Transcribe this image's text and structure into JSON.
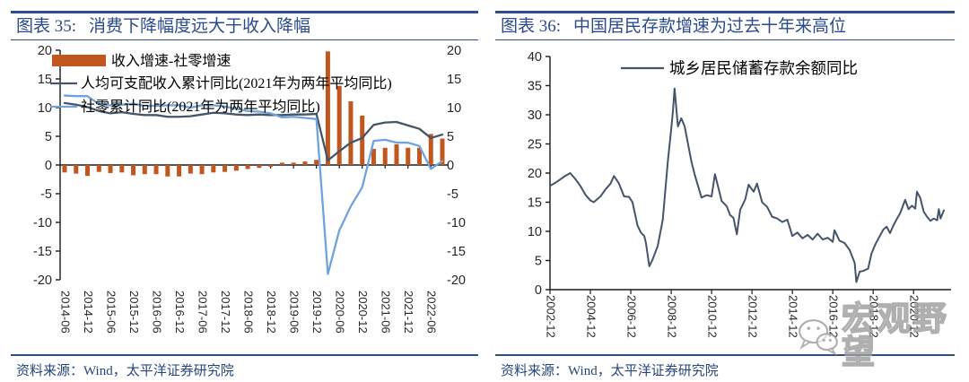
{
  "source_note": "资料来源：Wind，太平洋证券研究院",
  "watermark": {
    "text": "宏观野望",
    "icon": "wechat-bubbles-icon"
  },
  "colors": {
    "title_blue": "#2B4A8C",
    "rule_blue": "#2F4F8C",
    "source_blue": "#26447E",
    "bar_orange": "#C0571F",
    "income_line": "#44546A",
    "retail_line": "#6FA3DC",
    "deposit_line": "#44546A",
    "axis": "#1a1a1a",
    "watermark_gray": "#9c9c9c"
  },
  "left_panel": {
    "title_prefix": "图表 35:",
    "title": "消费下降幅度远大于收入降幅"
  },
  "right_panel": {
    "title_prefix": "图表 36:",
    "title": "中国居民存款增速为过去十年来高位"
  },
  "chart_data": [
    {
      "type": "bar",
      "subtype": "combo-bar-line",
      "title": "图表 35: 消费下降幅度远大于收入降幅",
      "ylim": [
        -20,
        20
      ],
      "ytick_step": 5,
      "secondary_y_axis": true,
      "grid": false,
      "legend_position": "top-left",
      "categories": [
        "2014-06",
        "2014-09",
        "2014-12",
        "2015-03",
        "2015-06",
        "2015-09",
        "2015-12",
        "2016-03",
        "2016-06",
        "2016-09",
        "2016-12",
        "2017-03",
        "2017-06",
        "2017-09",
        "2017-12",
        "2018-03",
        "2018-06",
        "2018-09",
        "2018-12",
        "2019-03",
        "2019-06",
        "2019-09",
        "2019-12",
        "2020-03",
        "2020-06",
        "2020-09",
        "2020-12",
        "2021-03",
        "2021-06",
        "2021-09",
        "2021-12",
        "2022-03",
        "2022-06",
        "2022-09"
      ],
      "x_tick_labels": [
        "2014-06",
        "2014-12",
        "2015-06",
        "2015-12",
        "2016-06",
        "2016-12",
        "2017-06",
        "2017-12",
        "2018-06",
        "2018-12",
        "2019-06",
        "2019-12",
        "2020-06",
        "2020-12",
        "2021-06",
        "2021-12",
        "2022-06"
      ],
      "series": [
        {
          "name": "收入增速-社零增速",
          "type": "bar",
          "color_key": "bar_orange",
          "values": [
            -1.3,
            -1.5,
            -1.9,
            -1.2,
            -1.4,
            -1.3,
            -1.8,
            -1.6,
            -1.6,
            -2.0,
            -2.0,
            -1.5,
            -1.6,
            -1.3,
            -1.2,
            -1.0,
            -0.7,
            -0.5,
            -0.3,
            0.4,
            0.4,
            0.6,
            0.9,
            19.8,
            13.8,
            11.1,
            8.6,
            2.8,
            3.0,
            3.6,
            3.0,
            3.0,
            5.4,
            4.6
          ]
        },
        {
          "name": "人均可支配收入累计同比(2021年为两年平均同比)",
          "type": "line",
          "color_key": "income_line",
          "values": [
            10.8,
            10.5,
            10.1,
            9.4,
            9.0,
            9.2,
            8.9,
            8.7,
            8.7,
            8.4,
            8.4,
            8.5,
            8.8,
            9.1,
            9.0,
            8.8,
            8.7,
            8.8,
            8.7,
            8.7,
            8.8,
            8.8,
            8.9,
            0.8,
            2.4,
            3.9,
            4.7,
            7.0,
            7.4,
            7.5,
            6.9,
            6.3,
            4.7,
            5.3
          ]
        },
        {
          "name": "社零累计同比(2021年为两年平均同比)",
          "type": "line",
          "color_key": "retail_line",
          "values": [
            12.1,
            12.0,
            12.0,
            10.6,
            10.4,
            10.5,
            10.7,
            10.3,
            10.3,
            10.4,
            10.4,
            10.0,
            10.4,
            10.4,
            10.2,
            9.8,
            9.4,
            9.3,
            9.0,
            8.3,
            8.4,
            8.2,
            8.0,
            -19.0,
            -11.4,
            -7.2,
            -3.9,
            4.2,
            4.4,
            3.9,
            3.9,
            3.3,
            -0.7,
            0.7
          ]
        }
      ]
    },
    {
      "type": "line",
      "title": "图表 36: 中国居民存款增速为过去十年来高位",
      "ylim": [
        0,
        40
      ],
      "ytick_step": 5,
      "grid": false,
      "legend_position": "top-center",
      "x_tick_labels": [
        "2002-12",
        "2004-12",
        "2006-12",
        "2008-12",
        "2010-12",
        "2012-12",
        "2014-12",
        "2016-12",
        "2018-12",
        "2020-12"
      ],
      "x_range_months": [
        "2002-12",
        "2022-06"
      ],
      "series": [
        {
          "name": "城乡居民储蓄存款余额同比",
          "type": "line",
          "color_key": "deposit_line",
          "x": [
            "2002-12",
            "2003-03",
            "2003-06",
            "2003-09",
            "2003-12",
            "2004-03",
            "2004-06",
            "2004-09",
            "2004-12",
            "2005-02",
            "2005-06",
            "2005-09",
            "2005-12",
            "2006-02",
            "2006-05",
            "2006-08",
            "2006-11",
            "2007-01",
            "2007-04",
            "2007-06",
            "2007-08",
            "2007-09",
            "2007-11",
            "2008-01",
            "2008-04",
            "2008-07",
            "2008-10",
            "2008-12",
            "2009-01",
            "2009-02",
            "2009-04",
            "2009-06",
            "2009-08",
            "2009-10",
            "2009-12",
            "2010-02",
            "2010-06",
            "2010-09",
            "2010-12",
            "2011-02",
            "2011-06",
            "2011-09",
            "2011-11",
            "2012-01",
            "2012-03",
            "2012-05",
            "2012-08",
            "2012-10",
            "2013-01",
            "2013-03",
            "2013-06",
            "2013-09",
            "2013-12",
            "2014-03",
            "2014-06",
            "2014-09",
            "2014-12",
            "2015-03",
            "2015-06",
            "2015-09",
            "2015-12",
            "2016-03",
            "2016-06",
            "2016-09",
            "2016-12",
            "2017-01",
            "2017-04",
            "2017-07",
            "2017-10",
            "2018-01",
            "2018-02",
            "2018-04",
            "2018-06",
            "2018-09",
            "2018-11",
            "2019-01",
            "2019-03",
            "2019-06",
            "2019-08",
            "2019-10",
            "2019-12",
            "2020-02",
            "2020-04",
            "2020-07",
            "2020-09",
            "2020-11",
            "2021-01",
            "2021-02",
            "2021-04",
            "2021-06",
            "2021-08",
            "2021-10",
            "2021-12",
            "2022-02",
            "2022-03",
            "2022-04",
            "2022-06"
          ],
          "values": [
            17.8,
            18.3,
            18.9,
            19.5,
            20.0,
            19.0,
            17.8,
            16.3,
            15.3,
            15.0,
            16.0,
            17.2,
            18.2,
            19.5,
            18.2,
            16.0,
            15.9,
            15.0,
            11.0,
            9.8,
            9.2,
            8.0,
            4.0,
            5.2,
            7.5,
            12.0,
            22.0,
            27.5,
            30.5,
            34.5,
            28.0,
            29.4,
            28.0,
            25.0,
            22.0,
            19.7,
            15.8,
            16.2,
            16.0,
            19.8,
            15.2,
            14.3,
            12.8,
            12.3,
            9.5,
            13.7,
            15.5,
            18.0,
            16.8,
            18.2,
            15.0,
            14.2,
            12.5,
            12.2,
            11.6,
            12.0,
            9.2,
            9.8,
            8.8,
            9.4,
            8.6,
            9.6,
            8.6,
            8.9,
            8.2,
            10.2,
            8.4,
            8.0,
            6.8,
            4.6,
            1.3,
            3.1,
            3.2,
            3.6,
            6.2,
            7.6,
            8.7,
            10.3,
            10.8,
            9.7,
            11.0,
            12.1,
            13.1,
            15.4,
            13.8,
            14.4,
            13.9,
            16.8,
            15.7,
            13.4,
            12.5,
            11.8,
            12.2,
            11.9,
            13.8,
            12.2,
            13.6
          ]
        }
      ]
    }
  ]
}
